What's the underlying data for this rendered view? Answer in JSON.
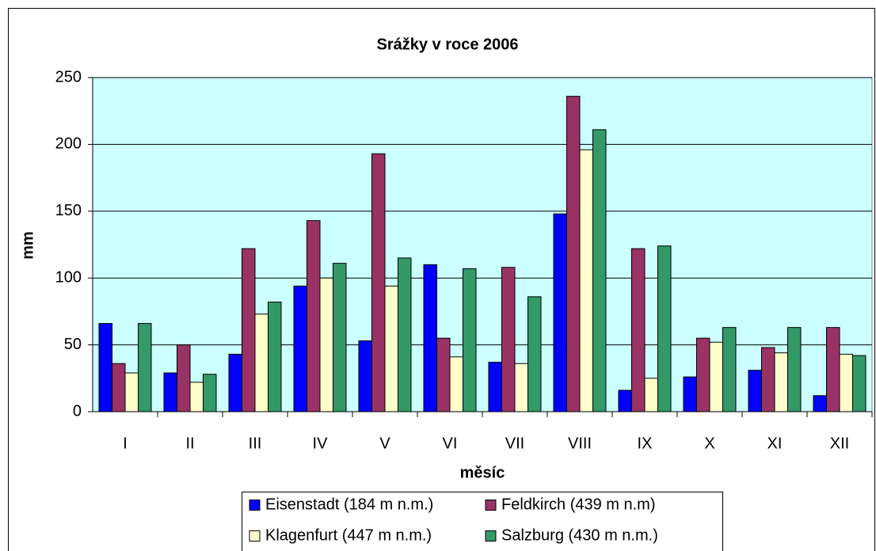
{
  "chart_data": {
    "type": "bar",
    "title": "Srážky v roce 2006",
    "x_label": "měsíc",
    "y_label": "mm",
    "categories": [
      "I",
      "II",
      "III",
      "IV",
      "V",
      "VI",
      "VII",
      "VIII",
      "IX",
      "X",
      "XI",
      "XII"
    ],
    "series": [
      {
        "name": "Eisenstadt (184 m n.m.)",
        "color": "#0000ff",
        "values": [
          66,
          29,
          43,
          94,
          53,
          110,
          37,
          148,
          16,
          26,
          31,
          12
        ]
      },
      {
        "name": "Feldkirch (439 m n.m)",
        "color": "#993366",
        "values": [
          36,
          50,
          122,
          143,
          193,
          55,
          108,
          236,
          122,
          55,
          48,
          63
        ]
      },
      {
        "name": "Klagenfurt (447 m n.m.)",
        "color": "#ffffcc",
        "values": [
          29,
          22,
          73,
          100,
          94,
          41,
          36,
          196,
          25,
          52,
          44,
          43
        ]
      },
      {
        "name": "Salzburg (430 m n.m.)",
        "color": "#339966",
        "values": [
          66,
          28,
          82,
          111,
          115,
          107,
          86,
          211,
          124,
          63,
          63,
          42
        ]
      }
    ],
    "ylim": [
      0,
      250
    ],
    "yticks": [
      0,
      50,
      100,
      150,
      200,
      250
    ],
    "grid": true,
    "plot_background": "#ccffff",
    "legend": "bottom"
  }
}
